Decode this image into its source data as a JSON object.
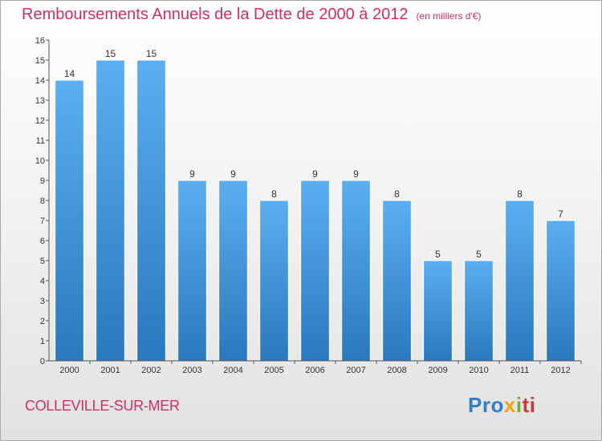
{
  "chart_data": {
    "type": "bar",
    "title": "Remboursements Annuels de la Dette de 2000 à 2012",
    "subtitle": "(en milliers d'€)",
    "categories": [
      "2000",
      "2001",
      "2002",
      "2003",
      "2004",
      "2005",
      "2006",
      "2007",
      "2008",
      "2009",
      "2010",
      "2011",
      "2012"
    ],
    "values": [
      14,
      15,
      15,
      9,
      9,
      8,
      9,
      9,
      8,
      5,
      5,
      8,
      7
    ],
    "ylim": [
      0,
      16
    ],
    "yticks": [
      0,
      1,
      2,
      3,
      4,
      5,
      6,
      7,
      8,
      9,
      10,
      11,
      12,
      13,
      14,
      15,
      16
    ],
    "grid": false,
    "bar_color": "#3d8fd6"
  },
  "footer": {
    "commune": "COLLEVILLE-SUR-MER",
    "logo_parts": [
      "Pro",
      "x",
      "i",
      "ti"
    ]
  },
  "colors": {
    "title": "#cf2f63",
    "axis": "#333333"
  }
}
